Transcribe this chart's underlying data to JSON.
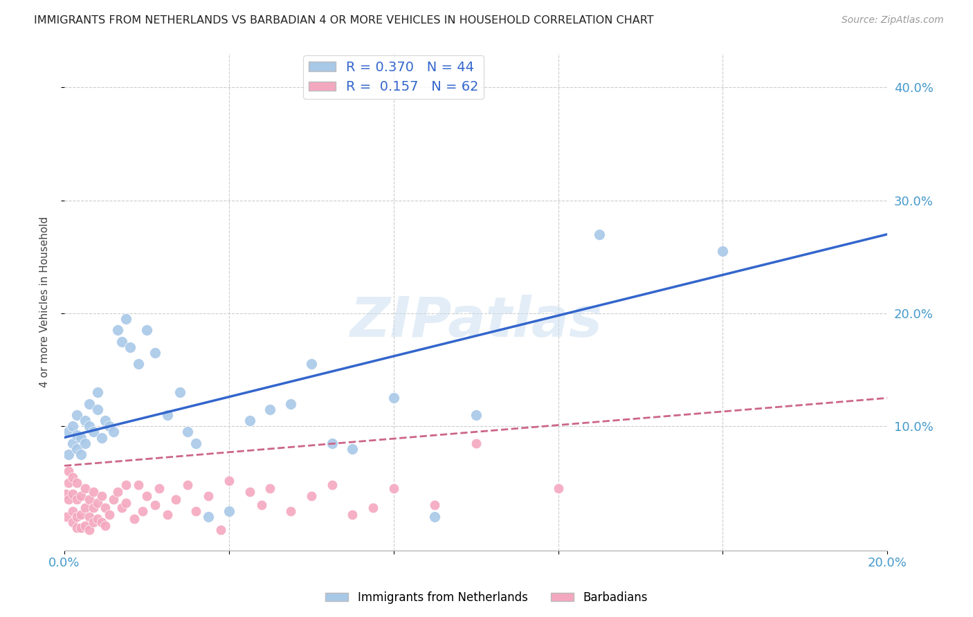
{
  "title": "IMMIGRANTS FROM NETHERLANDS VS BARBADIAN 4 OR MORE VEHICLES IN HOUSEHOLD CORRELATION CHART",
  "source": "Source: ZipAtlas.com",
  "ylabel": "4 or more Vehicles in Household",
  "xlim": [
    0.0,
    0.2
  ],
  "ylim": [
    -0.01,
    0.43
  ],
  "series1_color": "#a8c8e8",
  "series2_color": "#f4a8c0",
  "line1_color": "#3366cc",
  "line2_color": "#cc6688",
  "R1": 0.37,
  "N1": 44,
  "R2": 0.157,
  "N2": 62,
  "legend1_label": "Immigrants from Netherlands",
  "legend2_label": "Barbadians",
  "watermark": "ZIPatlas",
  "background_color": "#ffffff",
  "grid_color": "#cccccc",
  "axis_color": "#4499cc",
  "line1_y0": 0.09,
  "line1_y1": 0.27,
  "line2_y0": 0.065,
  "line2_y1": 0.125,
  "series1_x": [
    0.001,
    0.001,
    0.002,
    0.002,
    0.003,
    0.003,
    0.003,
    0.004,
    0.004,
    0.005,
    0.005,
    0.006,
    0.006,
    0.007,
    0.008,
    0.008,
    0.009,
    0.01,
    0.011,
    0.012,
    0.013,
    0.014,
    0.015,
    0.016,
    0.018,
    0.02,
    0.022,
    0.025,
    0.028,
    0.03,
    0.032,
    0.035,
    0.04,
    0.045,
    0.05,
    0.055,
    0.06,
    0.065,
    0.07,
    0.08,
    0.09,
    0.1,
    0.13,
    0.16
  ],
  "series1_y": [
    0.075,
    0.095,
    0.085,
    0.1,
    0.08,
    0.092,
    0.11,
    0.075,
    0.09,
    0.085,
    0.105,
    0.1,
    0.12,
    0.095,
    0.115,
    0.13,
    0.09,
    0.105,
    0.1,
    0.095,
    0.185,
    0.175,
    0.195,
    0.17,
    0.155,
    0.185,
    0.165,
    0.11,
    0.13,
    0.095,
    0.085,
    0.02,
    0.025,
    0.105,
    0.115,
    0.12,
    0.155,
    0.085,
    0.08,
    0.125,
    0.02,
    0.11,
    0.27,
    0.255
  ],
  "series2_x": [
    0.0003,
    0.0005,
    0.001,
    0.001,
    0.001,
    0.002,
    0.002,
    0.002,
    0.002,
    0.003,
    0.003,
    0.003,
    0.003,
    0.004,
    0.004,
    0.004,
    0.005,
    0.005,
    0.005,
    0.006,
    0.006,
    0.006,
    0.007,
    0.007,
    0.007,
    0.008,
    0.008,
    0.009,
    0.009,
    0.01,
    0.01,
    0.011,
    0.012,
    0.013,
    0.014,
    0.015,
    0.015,
    0.017,
    0.018,
    0.019,
    0.02,
    0.022,
    0.023,
    0.025,
    0.027,
    0.03,
    0.032,
    0.035,
    0.038,
    0.04,
    0.045,
    0.048,
    0.05,
    0.055,
    0.06,
    0.065,
    0.07,
    0.075,
    0.08,
    0.09,
    0.1,
    0.12
  ],
  "series2_y": [
    0.04,
    0.02,
    0.035,
    0.05,
    0.06,
    0.015,
    0.025,
    0.04,
    0.055,
    0.01,
    0.02,
    0.035,
    0.05,
    0.01,
    0.022,
    0.038,
    0.012,
    0.028,
    0.045,
    0.008,
    0.02,
    0.035,
    0.015,
    0.028,
    0.042,
    0.018,
    0.032,
    0.015,
    0.038,
    0.012,
    0.028,
    0.022,
    0.035,
    0.042,
    0.028,
    0.048,
    0.032,
    0.018,
    0.048,
    0.025,
    0.038,
    0.03,
    0.045,
    0.022,
    0.035,
    0.048,
    0.025,
    0.038,
    0.008,
    0.052,
    0.042,
    0.03,
    0.045,
    0.025,
    0.038,
    0.048,
    0.022,
    0.028,
    0.045,
    0.03,
    0.085,
    0.045
  ]
}
